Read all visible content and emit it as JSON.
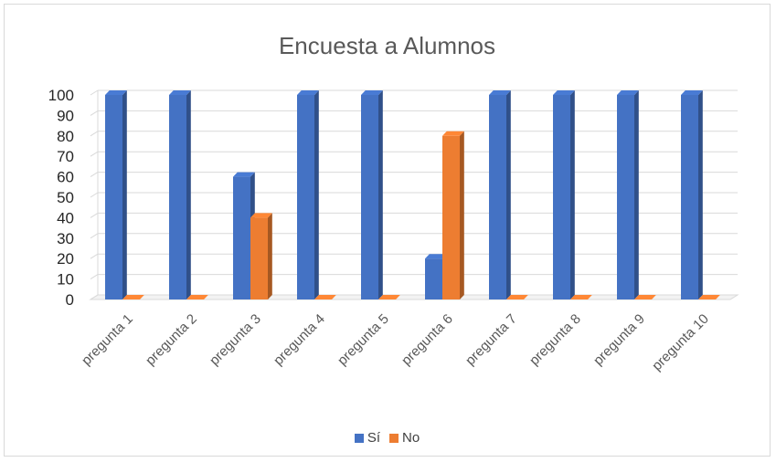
{
  "chart_data": {
    "type": "bar",
    "title": "Encuesta a Alumnos",
    "categories": [
      "pregunta 1",
      "pregunta 2",
      "pregunta 3",
      "pregunta 4",
      "pregunta 5",
      "pregunta 6",
      "pregunta 7",
      "pregunta 8",
      "pregunta 9",
      "pregunta 10"
    ],
    "series": [
      {
        "name": "Sí",
        "color": "#4472c4",
        "values": [
          100,
          100,
          60,
          100,
          100,
          20,
          100,
          100,
          100,
          100
        ]
      },
      {
        "name": "No",
        "color": "#ed7d31",
        "values": [
          0,
          0,
          40,
          0,
          0,
          80,
          0,
          0,
          0,
          0
        ]
      }
    ],
    "ylim": [
      0,
      100
    ],
    "yticks": [
      "0",
      "10",
      "20",
      "30",
      "40",
      "50",
      "60",
      "70",
      "80",
      "90",
      "100"
    ],
    "grid": true,
    "legend_position": "bottom"
  }
}
